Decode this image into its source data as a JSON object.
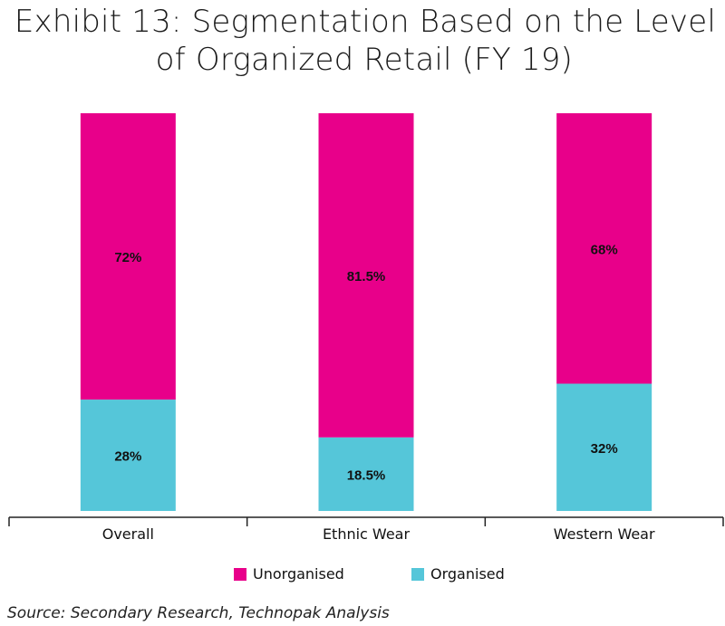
{
  "title": {
    "line1": "Exhibit 13: Segmentation Based on the Level",
    "line2": "of Organized Retail (FY 19)"
  },
  "chart_data": {
    "type": "bar",
    "stacked": true,
    "categories": [
      "Overall",
      "Ethnic Wear",
      "Western Wear"
    ],
    "series": [
      {
        "name": "Organised",
        "values": [
          28,
          18.5,
          32
        ],
        "labels": [
          "28%",
          "18.5%",
          "32%"
        ],
        "color": "#55c6d9"
      },
      {
        "name": "Unorganised",
        "values": [
          72,
          81.5,
          68
        ],
        "labels": [
          "72%",
          "81.5%",
          "68%"
        ],
        "color": "#e8008a"
      }
    ],
    "ylim": [
      0,
      100
    ],
    "grid": false,
    "legend_position": "bottom"
  },
  "legend": [
    {
      "label": "Unorganised",
      "color": "#e8008a"
    },
    {
      "label": "Organised",
      "color": "#55c6d9"
    }
  ],
  "source": "Source: Secondary Research, Technopak Analysis"
}
